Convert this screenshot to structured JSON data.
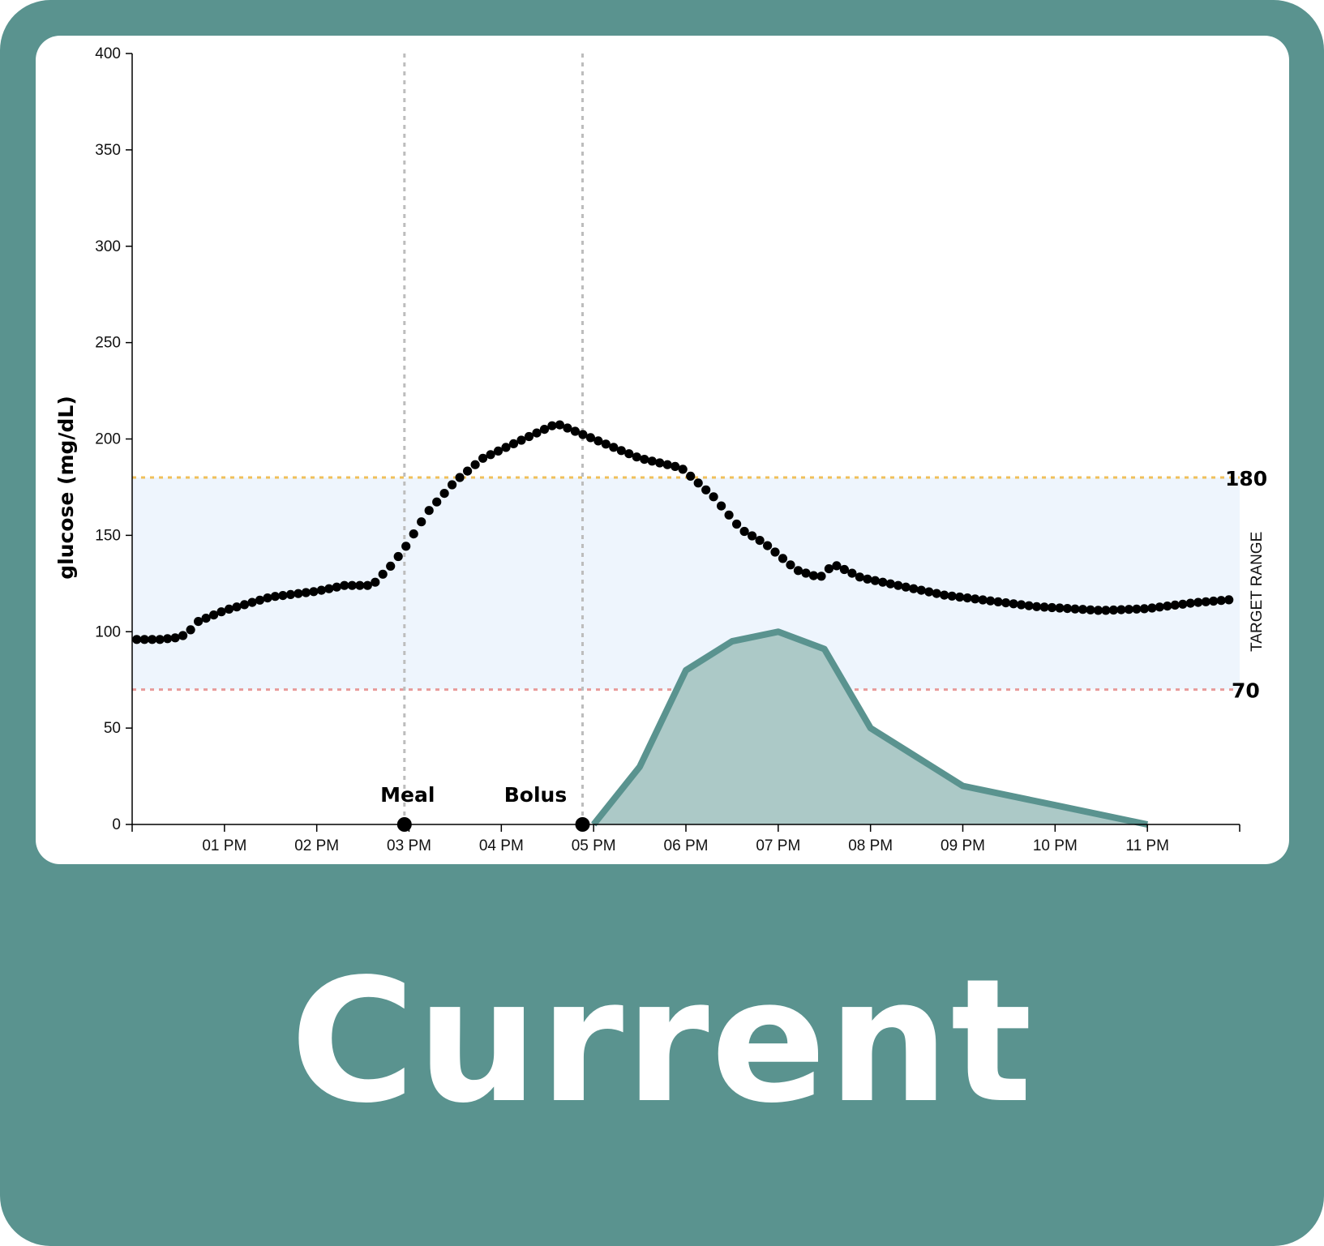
{
  "caption": "Current",
  "colors": {
    "frame": "#5a938f",
    "panel": "#ffffff",
    "target_band": "#eef5fd",
    "upper_line": "#f0c05a",
    "lower_line": "#e89a9a",
    "event_line": "#bdbdbd",
    "glucose_points": "#000000",
    "insulin_fill": "#acc9c7",
    "insulin_stroke": "#5a938f"
  },
  "chart_data": {
    "type": "scatter",
    "ylabel": "glucose (mg/dL)",
    "ylim": [
      0,
      400
    ],
    "yticks": [
      0,
      50,
      100,
      150,
      200,
      250,
      300,
      350,
      400
    ],
    "xlim_hours": [
      12.0,
      24.0
    ],
    "xticks": [
      {
        "hour": 13,
        "label": "01 PM"
      },
      {
        "hour": 14,
        "label": "02 PM"
      },
      {
        "hour": 15,
        "label": "03 PM"
      },
      {
        "hour": 16,
        "label": "04 PM"
      },
      {
        "hour": 17,
        "label": "05 PM"
      },
      {
        "hour": 18,
        "label": "06 PM"
      },
      {
        "hour": 19,
        "label": "07 PM"
      },
      {
        "hour": 20,
        "label": "08 PM"
      },
      {
        "hour": 21,
        "label": "09 PM"
      },
      {
        "hour": 22,
        "label": "10 PM"
      },
      {
        "hour": 23,
        "label": "11 PM"
      }
    ],
    "target_range": {
      "low": 70,
      "high": 180,
      "label": "TARGET RANGE",
      "low_label": "70",
      "high_label": "180"
    },
    "events": [
      {
        "name": "Meal",
        "hour": 14.95
      },
      {
        "name": "Bolus",
        "hour": 16.88
      }
    ],
    "glucose_anchors": [
      [
        12.05,
        96
      ],
      [
        12.3,
        96
      ],
      [
        12.5,
        97
      ],
      [
        12.6,
        99
      ],
      [
        12.7,
        105
      ],
      [
        13.0,
        111
      ],
      [
        13.5,
        118
      ],
      [
        14.0,
        121
      ],
      [
        14.3,
        124
      ],
      [
        14.6,
        124
      ],
      [
        14.8,
        134
      ],
      [
        14.95,
        143
      ],
      [
        15.0,
        147
      ],
      [
        15.2,
        162
      ],
      [
        15.5,
        178
      ],
      [
        15.8,
        190
      ],
      [
        16.2,
        199
      ],
      [
        16.6,
        208
      ],
      [
        17.0,
        200
      ],
      [
        17.5,
        190
      ],
      [
        17.95,
        185
      ],
      [
        18.3,
        170
      ],
      [
        18.6,
        153
      ],
      [
        18.85,
        146
      ],
      [
        19.2,
        132
      ],
      [
        19.45,
        128
      ],
      [
        19.6,
        135
      ],
      [
        19.9,
        128
      ],
      [
        20.3,
        124
      ],
      [
        20.8,
        119
      ],
      [
        21.3,
        116
      ],
      [
        21.8,
        113
      ],
      [
        22.5,
        111
      ],
      [
        23.0,
        112
      ],
      [
        23.5,
        115
      ],
      [
        24.0,
        117
      ]
    ],
    "insulin_curve": [
      [
        17.0,
        0
      ],
      [
        17.5,
        30
      ],
      [
        18.0,
        80
      ],
      [
        18.5,
        95
      ],
      [
        19.0,
        100
      ],
      [
        19.5,
        91
      ],
      [
        20.0,
        50
      ],
      [
        20.5,
        35
      ],
      [
        21.0,
        20
      ],
      [
        22.0,
        10
      ],
      [
        23.0,
        0
      ]
    ]
  }
}
